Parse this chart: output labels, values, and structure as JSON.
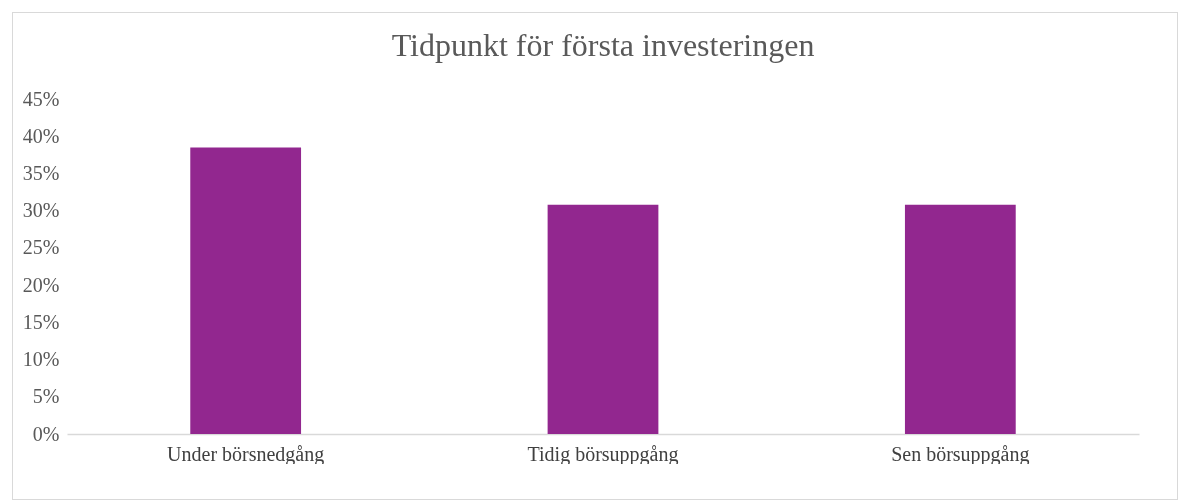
{
  "chart_data": {
    "type": "bar",
    "title": "Tidpunkt för första investeringen",
    "categories": [
      "Under börsnedgång",
      "Tidig börsuppgång",
      "Sen börsuppgång"
    ],
    "values": [
      38.5,
      30.8,
      30.8
    ],
    "color": "#92278f",
    "ylim": [
      0,
      45
    ],
    "yticks": [
      {
        "value": 0,
        "label": "0%"
      },
      {
        "value": 5,
        "label": "5%"
      },
      {
        "value": 10,
        "label": "10%"
      },
      {
        "value": 15,
        "label": "15%"
      },
      {
        "value": 20,
        "label": "20%"
      },
      {
        "value": 25,
        "label": "25%"
      },
      {
        "value": 30,
        "label": "30%"
      },
      {
        "value": 35,
        "label": "35%"
      },
      {
        "value": 40,
        "label": "40%"
      },
      {
        "value": 45,
        "label": "45%"
      }
    ],
    "grid": false
  }
}
